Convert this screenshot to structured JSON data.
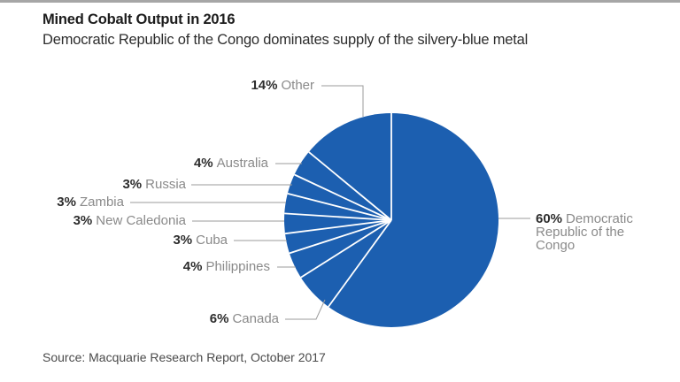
{
  "header": {
    "title": "Mined Cobalt Output in 2016",
    "subtitle": "Democratic Republic of the Congo dominates supply of the silvery-blue metal"
  },
  "source": "Source: Macquarie Research Report, October 2017",
  "chart_data": {
    "type": "pie",
    "title": "Mined Cobalt Output in 2016",
    "subtitle": "Democratic Republic of the Congo dominates supply of the silvery-blue metal",
    "unit": "percent",
    "start_angle": "12 o'clock",
    "direction": "clockwise",
    "slices": [
      {
        "name": "Democratic Republic of the Congo",
        "value": 60,
        "label": "60%"
      },
      {
        "name": "Canada",
        "value": 6,
        "label": "6%"
      },
      {
        "name": "Philippines",
        "value": 4,
        "label": "4%"
      },
      {
        "name": "Cuba",
        "value": 3,
        "label": "3%"
      },
      {
        "name": "New Caledonia",
        "value": 3,
        "label": "3%"
      },
      {
        "name": "Zambia",
        "value": 3,
        "label": "3%"
      },
      {
        "name": "Russia",
        "value": 3,
        "label": "3%"
      },
      {
        "name": "Australia",
        "value": 4,
        "label": "4%"
      },
      {
        "name": "Other",
        "value": 14,
        "label": "14%"
      }
    ],
    "legend": "none",
    "colors": {
      "slice_fill": "#1c5fb0",
      "divider": "#ffffff",
      "leader_line": "#9b9b9b",
      "pct_text": "#2d2d2d",
      "name_text": "#8a8a8a"
    }
  }
}
